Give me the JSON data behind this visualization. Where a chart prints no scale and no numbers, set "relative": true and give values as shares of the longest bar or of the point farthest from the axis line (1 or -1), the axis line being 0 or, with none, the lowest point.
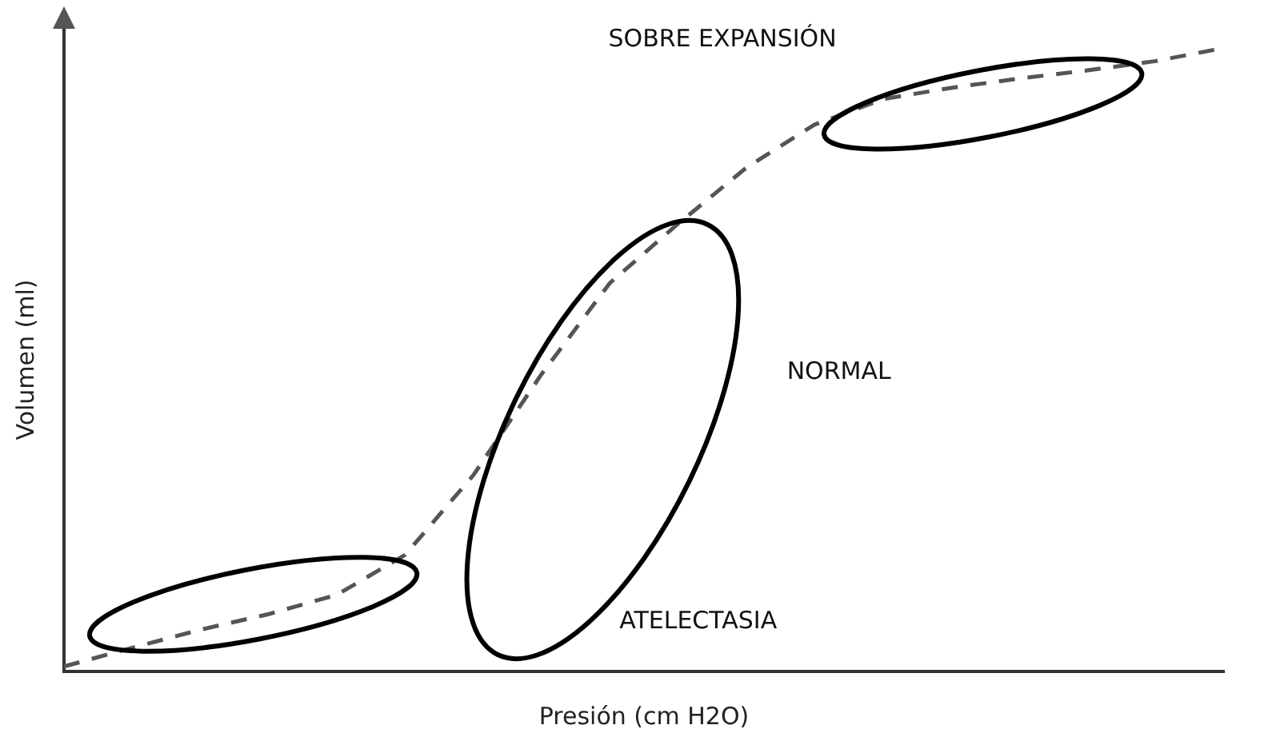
{
  "chart_data": {
    "type": "line",
    "relative": true,
    "xlabel": "Presión (cm H2O)",
    "ylabel": "Volumen (ml)",
    "categories": [
      null,
      null,
      null,
      null,
      null,
      null,
      null,
      null,
      null,
      null,
      null,
      null,
      null,
      null,
      null,
      null,
      null,
      null
    ],
    "series": [
      {
        "color": "#555555",
        "values": [
          0.008,
          0.038,
          0.067,
          0.092,
          0.123,
          0.187,
          0.315,
          0.477,
          0.623,
          0.718,
          0.808,
          0.877,
          0.918,
          0.936,
          0.951,
          0.964,
          0.979,
          1
        ]
      }
    ],
    "line_style": "dashed",
    "marker": "none",
    "grid": false,
    "legend": false,
    "tick_labels": false,
    "annotations": [
      "SOBRE EXPANSIÓN",
      "NORMAL",
      "ATELECTASIA"
    ]
  }
}
